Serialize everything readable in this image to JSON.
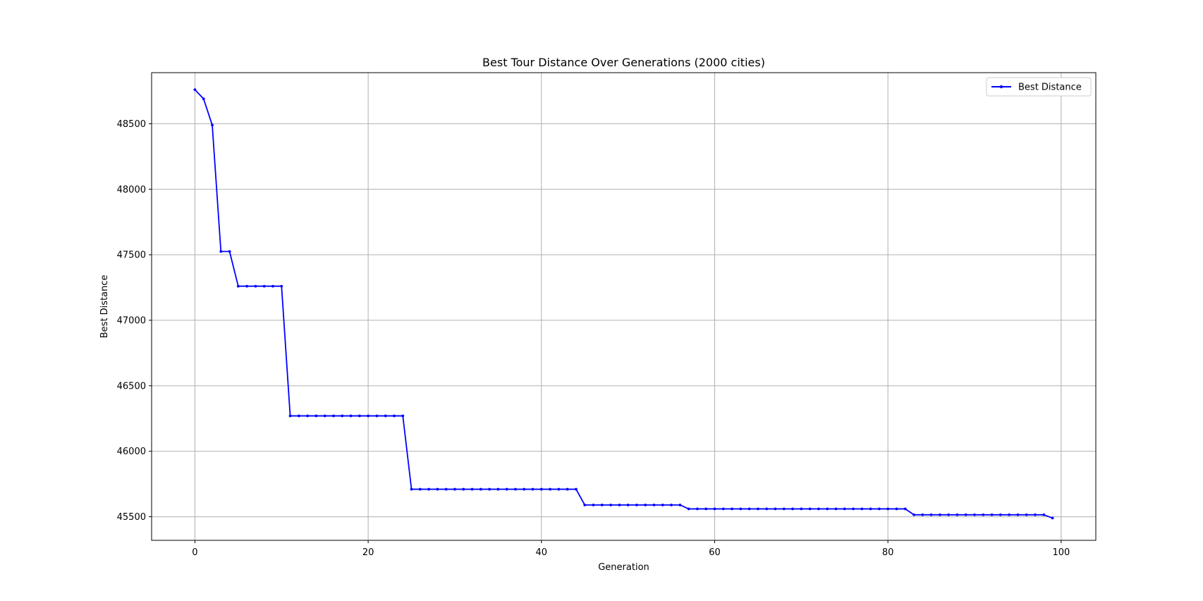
{
  "chart_data": {
    "type": "line",
    "title": "Best Tour Distance Over Generations (2000 cities)",
    "xlabel": "Generation",
    "ylabel": "Best Distance",
    "xlim": [
      -5,
      104
    ],
    "ylim": [
      45320,
      48890
    ],
    "xticks": [
      0,
      20,
      40,
      60,
      80,
      100
    ],
    "yticks": [
      45500,
      46000,
      46500,
      47000,
      47500,
      48000,
      48500
    ],
    "grid": true,
    "legend_position": "upper right",
    "series": [
      {
        "name": "Best Distance",
        "color": "#0000ff",
        "marker": "dot",
        "x": [
          0,
          1,
          2,
          3,
          4,
          5,
          6,
          7,
          8,
          9,
          10,
          11,
          12,
          13,
          14,
          15,
          16,
          17,
          18,
          19,
          20,
          21,
          22,
          23,
          24,
          25,
          26,
          27,
          28,
          29,
          30,
          31,
          32,
          33,
          34,
          35,
          36,
          37,
          38,
          39,
          40,
          41,
          42,
          43,
          44,
          45,
          46,
          47,
          48,
          49,
          50,
          51,
          52,
          53,
          54,
          55,
          56,
          57,
          58,
          59,
          60,
          61,
          62,
          63,
          64,
          65,
          66,
          67,
          68,
          69,
          70,
          71,
          72,
          73,
          74,
          75,
          76,
          77,
          78,
          79,
          80,
          81,
          82,
          83,
          84,
          85,
          86,
          87,
          88,
          89,
          90,
          91,
          92,
          93,
          94,
          95,
          96,
          97,
          98,
          99
        ],
        "values": [
          48760,
          48690,
          48490,
          47525,
          47525,
          47260,
          47260,
          47260,
          47260,
          47260,
          47260,
          46270,
          46270,
          46270,
          46270,
          46270,
          46270,
          46270,
          46270,
          46270,
          46270,
          46270,
          46270,
          46270,
          46270,
          45710,
          45710,
          45710,
          45710,
          45710,
          45710,
          45710,
          45710,
          45710,
          45710,
          45710,
          45710,
          45710,
          45710,
          45710,
          45710,
          45710,
          45710,
          45710,
          45710,
          45590,
          45590,
          45590,
          45590,
          45590,
          45590,
          45590,
          45590,
          45590,
          45590,
          45590,
          45590,
          45560,
          45560,
          45560,
          45560,
          45560,
          45560,
          45560,
          45560,
          45560,
          45560,
          45560,
          45560,
          45560,
          45560,
          45560,
          45560,
          45560,
          45560,
          45560,
          45560,
          45560,
          45560,
          45560,
          45560,
          45560,
          45560,
          45515,
          45515,
          45515,
          45515,
          45515,
          45515,
          45515,
          45515,
          45515,
          45515,
          45515,
          45515,
          45515,
          45515,
          45515,
          45515,
          45490
        ]
      }
    ]
  }
}
